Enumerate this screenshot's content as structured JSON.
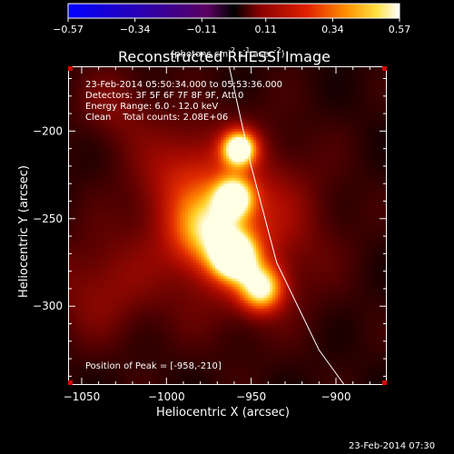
{
  "chart_data": {
    "type": "heatmap",
    "title": "Reconstructed RHESSI Image",
    "xlabel": "Heliocentric X (arcsec)",
    "ylabel": "Heliocentric Y (arcsec)",
    "xlim": [
      -1058,
      -870
    ],
    "ylim": [
      -345,
      -163
    ],
    "xticks": [
      -1050,
      -1000,
      -950,
      -900
    ],
    "yticks": [
      -200,
      -250,
      -300
    ],
    "colorbar": {
      "ticks": [
        "-0.57",
        "-0.34",
        "-0.11",
        "0.11",
        "0.34",
        "0.57"
      ],
      "min": -0.57,
      "max": 0.57,
      "units_base": "(photons cm",
      "units_exp1": "-2",
      "units_mid": " s",
      "units_exp2": "-1",
      "units_end": " asec",
      "units_exp3": "-2",
      "units_close": ")"
    },
    "annotations": {
      "line1": "23-Feb-2014 05:50:34.000 to 05:53:36.000",
      "line2": "Detectors: 3F 5F 6F 7F 8F 9F, Att 0",
      "line3": "Energy Range: 6.0 - 12.0 keV",
      "line4": "Clean    Total counts: 2.08E+06",
      "peak": "Position of Peak = [-958,-210]"
    },
    "blobs": [
      {
        "x": -957,
        "y": -210,
        "amp": 0.57,
        "sigma": 7
      },
      {
        "x": -960,
        "y": -238,
        "amp": 0.48,
        "sigma": 8
      },
      {
        "x": -960,
        "y": -272,
        "amp": 0.56,
        "sigma": 9
      },
      {
        "x": -944,
        "y": -290,
        "amp": 0.45,
        "sigma": 9
      },
      {
        "x": -975,
        "y": -258,
        "amp": 0.28,
        "sigma": 14
      },
      {
        "x": -990,
        "y": -225,
        "amp": 0.12,
        "sigma": 20
      },
      {
        "x": -1030,
        "y": -185,
        "amp": 0.1,
        "sigma": 16
      },
      {
        "x": -1040,
        "y": -290,
        "amp": 0.12,
        "sigma": 22
      },
      {
        "x": -960,
        "y": -255,
        "amp": 0.22,
        "sigma": 35
      }
    ],
    "limb": [
      [
        -963,
        -163
      ],
      [
        -950,
        -220
      ],
      [
        -935,
        -275
      ],
      [
        -910,
        -325
      ],
      [
        -895,
        -345
      ]
    ]
  },
  "footer": {
    "timestamp": "23-Feb-2014 07:30"
  }
}
